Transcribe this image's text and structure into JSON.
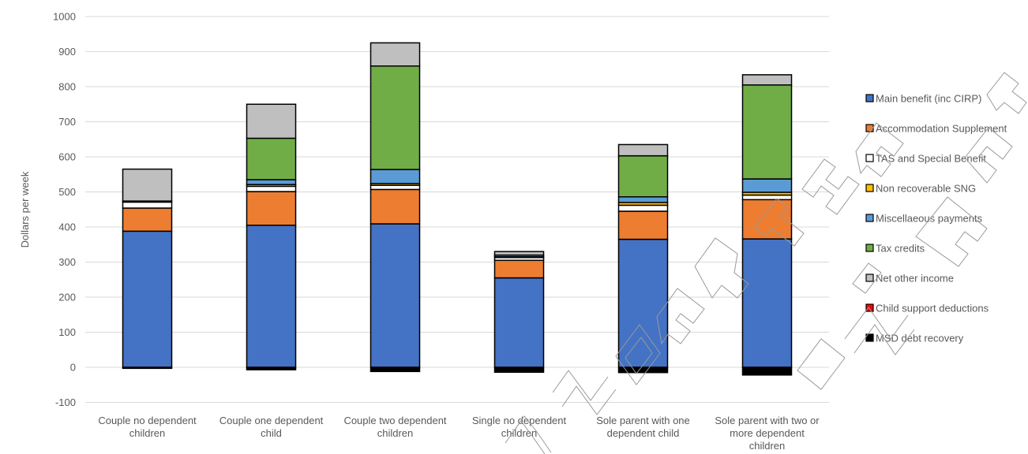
{
  "chart_data": {
    "type": "bar",
    "stacked": true,
    "ylabel": "Dollars per week",
    "xlabel": "",
    "ylim": [
      -100,
      1000
    ],
    "yticks": [
      -100,
      0,
      100,
      200,
      300,
      400,
      500,
      600,
      700,
      800,
      900,
      1000
    ],
    "grid": true,
    "legend_position": "right",
    "categories": [
      [
        "Couple no dependent",
        "children"
      ],
      [
        "Couple one dependent",
        "child"
      ],
      [
        "Couple two dependent",
        "children"
      ],
      [
        "Single no dependent",
        "children"
      ],
      [
        "Sole parent with one",
        "dependent child"
      ],
      [
        "Sole parent with two or",
        "more dependent",
        "children"
      ]
    ],
    "series": [
      {
        "name": "Main benefit (inc CIRP)",
        "color": "#4472c4",
        "values": [
          388,
          405,
          409,
          255,
          365,
          366
        ]
      },
      {
        "name": "Accommodation Supplement",
        "color": "#ed7d31",
        "values": [
          66,
          96,
          98,
          50,
          80,
          112
        ]
      },
      {
        "name": "TAS and Special Benefit",
        "color": "#ffffff",
        "values": [
          17,
          15,
          12,
          8,
          17,
          13
        ]
      },
      {
        "name": "Non recoverable SNG",
        "color": "#ffc000",
        "values": [
          2,
          5,
          5,
          2,
          8,
          8
        ]
      },
      {
        "name": "Miscellaeous payments",
        "color": "#5b9bd5",
        "values": [
          1,
          14,
          40,
          5,
          16,
          38
        ]
      },
      {
        "name": "Tax credits",
        "color": "#70ad47",
        "values": [
          0,
          118,
          295,
          0,
          117,
          268
        ]
      },
      {
        "name": "Net other income",
        "color": "#bfbfbf",
        "values": [
          91,
          97,
          66,
          10,
          32,
          29
        ]
      },
      {
        "name": "Child support deductions",
        "color": "#ff0000",
        "values": [
          0,
          0,
          0,
          0,
          0,
          0
        ]
      },
      {
        "name": "MSD debt recovery",
        "color": "#000000",
        "values": [
          -3,
          -7,
          -12,
          -14,
          -15,
          -22
        ]
      }
    ]
  }
}
